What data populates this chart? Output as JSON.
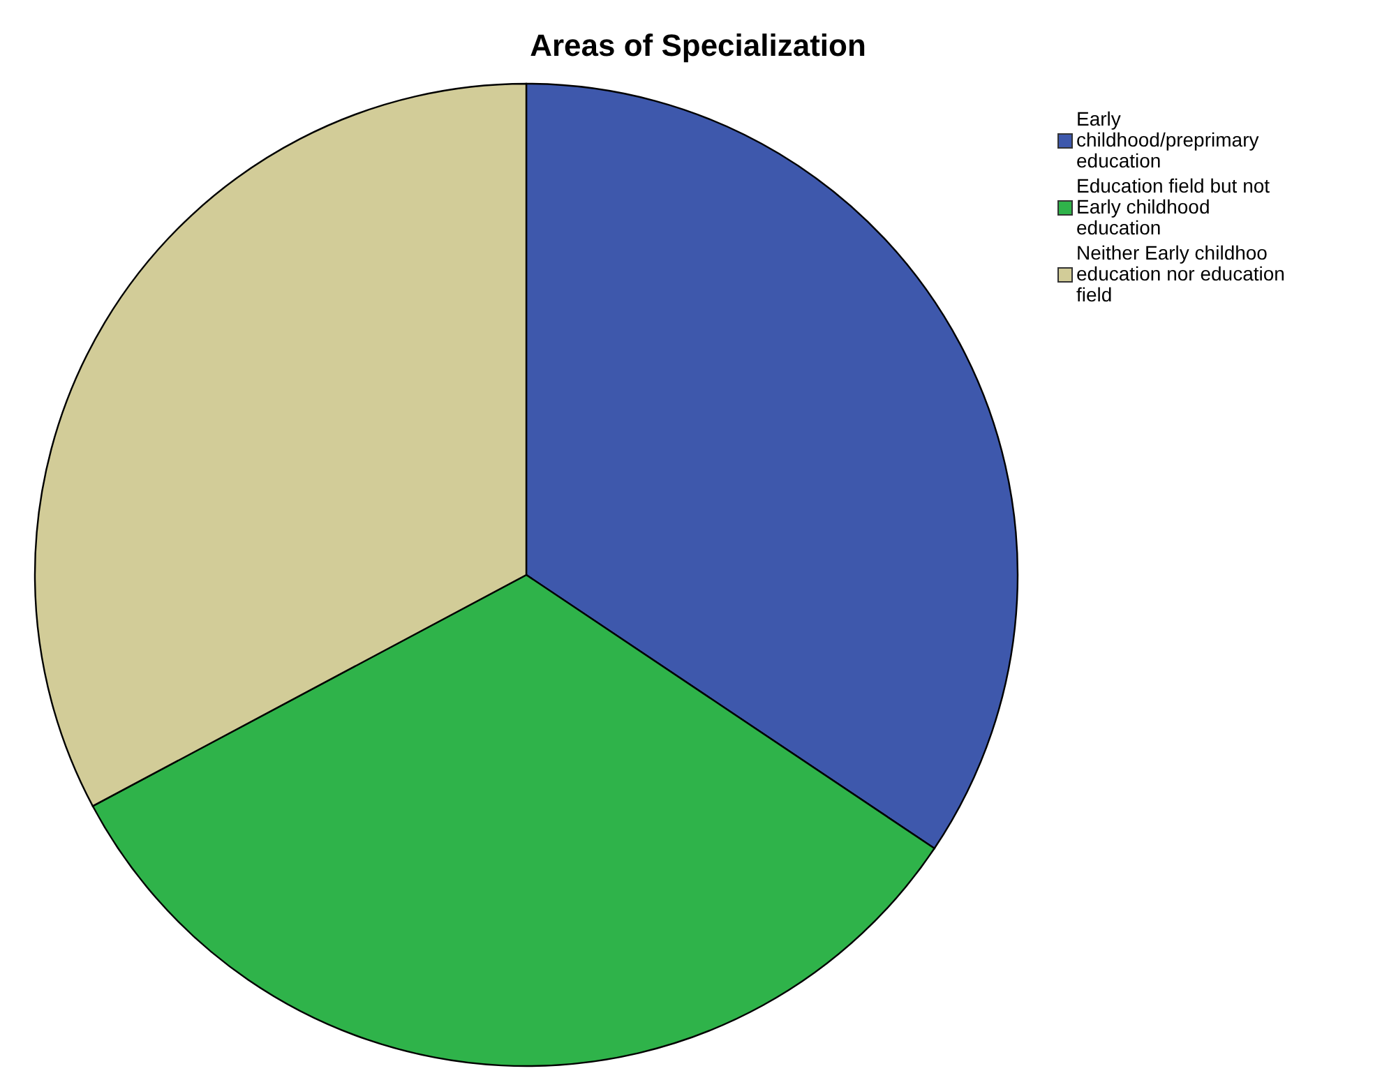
{
  "chart_data": {
    "type": "pie",
    "title": "Areas of Specialization",
    "categories": [
      "Early childhood/preprimary education",
      "Education field but not Early childhood education",
      "Neither Early childhoo education nor education field"
    ],
    "values": [
      34.4,
      32.8,
      32.8
    ],
    "colors": [
      "#3e58ac",
      "#2fb34a",
      "#d2cc98"
    ],
    "legend": "top right"
  }
}
